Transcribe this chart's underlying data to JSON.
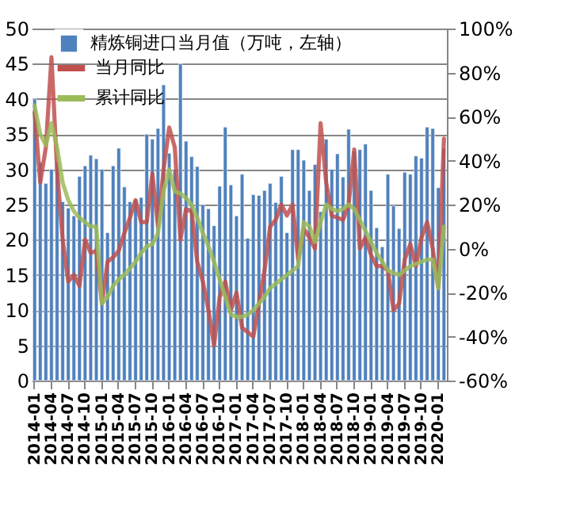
{
  "chart_data": {
    "type": "bar",
    "categories": [
      "2014-01",
      null,
      null,
      "2014-04",
      null,
      null,
      "2014-07",
      null,
      null,
      "2014-10",
      null,
      null,
      "2015-01",
      null,
      null,
      "2015-04",
      null,
      null,
      "2015-07",
      null,
      null,
      "2015-10",
      null,
      null,
      "2016-01",
      null,
      null,
      "2016-04",
      null,
      null,
      "2016-07",
      null,
      null,
      "2016-10",
      null,
      null,
      "2017-01",
      null,
      null,
      "2017-04",
      null,
      null,
      "2017-07",
      null,
      null,
      "2017-10",
      null,
      null,
      "2018-01",
      null,
      null,
      "2018-04",
      null,
      null,
      "2018-07",
      null,
      null,
      "2018-10",
      null,
      null,
      "2019-01",
      null,
      null,
      "2019-04",
      null,
      null,
      "2019-07",
      null,
      null,
      "2019-10",
      null,
      null,
      "2020-01",
      null
    ],
    "series": [
      {
        "name": "精炼铜进口当月值（万吨，左轴）",
        "color": "#4f81bd",
        "values": [
          40,
          31,
          28,
          30,
          31,
          25.4,
          24.5,
          23.4,
          29,
          30.5,
          32,
          31.5,
          30,
          21,
          30.5,
          33,
          27.5,
          25.4,
          25.7,
          26,
          35,
          34.3,
          35.8,
          42,
          32.3,
          30,
          45,
          34,
          31.8,
          30.4,
          25,
          24.4,
          22,
          27.6,
          36,
          27.8,
          23.4,
          29.3,
          20.2,
          26.4,
          26.3,
          27,
          28,
          25.3,
          29,
          21,
          32.8,
          32.8,
          31.3,
          27,
          30.7,
          24,
          34.3,
          30,
          32.2,
          28.9,
          35.7,
          32.6,
          32.8,
          33.6,
          27,
          21.7,
          19,
          29.3,
          24.8,
          21.6,
          29.6,
          29.3,
          31.9,
          31.6,
          36,
          35.8,
          27.4,
          33
        ]
      },
      {
        "name": "当月同比",
        "type": "line",
        "axis": "y2",
        "color": "#c0504d",
        "values": [
          62,
          30,
          46,
          87,
          36,
          4,
          -15,
          -12,
          -17,
          4,
          -2,
          -1,
          -25,
          -6,
          -4,
          -1,
          7,
          14,
          22,
          12,
          12,
          34,
          10,
          36,
          55,
          46,
          4,
          18,
          17,
          -6,
          -15,
          -28,
          -44,
          -22,
          -15,
          -28,
          -20,
          -36,
          -38,
          -40,
          -25,
          -10,
          10,
          13,
          20,
          15,
          20,
          -5,
          9,
          5,
          0,
          57,
          30,
          15,
          14,
          13,
          20,
          45,
          0,
          5,
          -3,
          -8,
          -8,
          -10,
          -28,
          -25,
          -5,
          2,
          -8,
          5,
          12,
          0,
          -18,
          50
        ]
      },
      {
        "name": "累计同比",
        "type": "line",
        "axis": "y2",
        "color": "#9bbb59",
        "values": [
          65,
          52,
          47,
          57,
          46,
          30,
          22,
          17,
          14,
          12,
          10,
          10,
          -25,
          -22,
          -17,
          -14,
          -12,
          -9,
          -6,
          -2,
          1,
          2,
          7,
          26,
          36,
          26,
          25,
          23,
          20,
          14,
          7,
          1,
          -6,
          -14,
          -22,
          -30,
          -31,
          -31,
          -30,
          -28,
          -25,
          -22,
          -18,
          -16,
          -14,
          -12,
          -10,
          -8,
          12,
          10,
          3,
          12,
          20,
          18,
          17,
          18,
          20,
          18,
          13,
          8,
          3,
          -2,
          -6,
          -10,
          -11,
          -12,
          -10,
          -8,
          -7,
          -6,
          -5,
          -5,
          -18,
          10
        ]
      }
    ],
    "ylim": [
      0,
      50
    ],
    "yticks": [
      0,
      5,
      10,
      15,
      20,
      25,
      30,
      35,
      40,
      45,
      50
    ],
    "y2lim": [
      -60,
      100
    ],
    "y2ticks": [
      {
        "value": -60,
        "label": "-60%"
      },
      {
        "value": -40,
        "label": "-40%"
      },
      {
        "value": -20,
        "label": "-20%"
      },
      {
        "value": 0,
        "label": "0%"
      },
      {
        "value": 20,
        "label": "20%"
      },
      {
        "value": 40,
        "label": "40%"
      },
      {
        "value": 60,
        "label": "60%"
      },
      {
        "value": 80,
        "label": "80%"
      },
      {
        "value": 100,
        "label": "100%"
      }
    ],
    "grid": "y",
    "legend": "top left"
  }
}
